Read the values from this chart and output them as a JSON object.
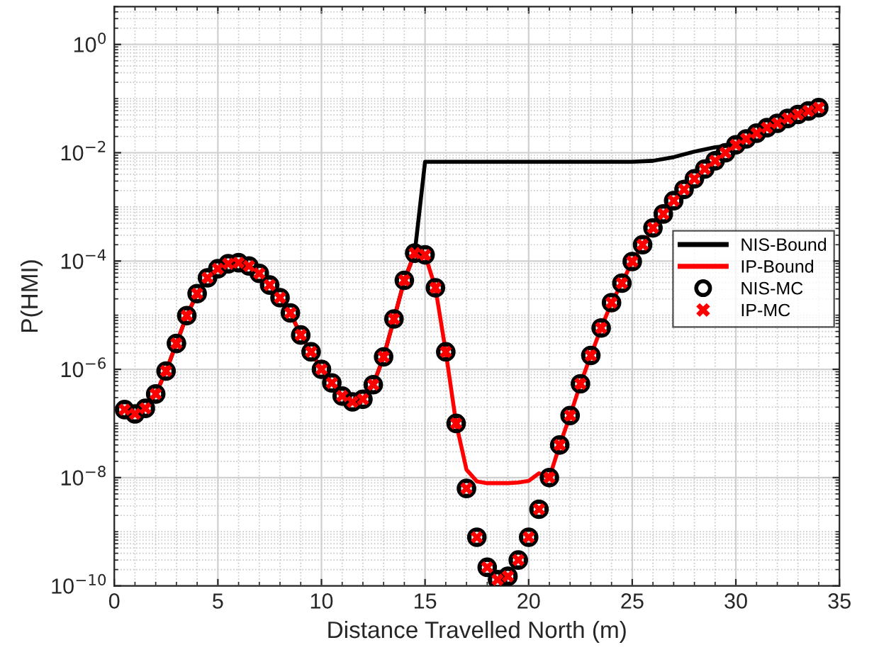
{
  "chart_data": {
    "type": "line",
    "xlabel": "Distance Travelled North (m)",
    "ylabel": "P(HMI)",
    "log": "y",
    "xlim": [
      0,
      35
    ],
    "xticks": [
      0,
      5,
      10,
      15,
      20,
      25,
      30,
      35
    ],
    "ylim": [
      1e-10,
      5
    ],
    "yticks": [
      {
        "value": 1e-10,
        "label": "10$^{−10}$"
      },
      {
        "value": 1e-08,
        "label": "10$^{−8}$"
      },
      {
        "value": 1e-06,
        "label": "10$^{−6}$"
      },
      {
        "value": 0.0001,
        "label": "10$^{−4}$"
      },
      {
        "value": 0.01,
        "label": "10$^{−2}$"
      },
      {
        "value": 1,
        "label": "10$^{0}$"
      }
    ],
    "grid": true,
    "legend": "right",
    "series": [
      {
        "name": "NIS-Bound",
        "color": "#000000",
        "line_style": "solid",
        "marker": "none",
        "x": [
          0.5,
          1,
          1.5,
          2,
          2.5,
          3,
          3.5,
          4,
          4.5,
          5,
          5.5,
          6,
          6.5,
          7,
          7.5,
          8,
          8.5,
          9,
          9.5,
          10,
          10.5,
          11,
          11.5,
          12,
          12.5,
          13,
          13.5,
          14,
          14.5,
          15,
          16,
          17,
          18,
          19,
          20,
          21,
          22,
          23,
          24,
          25,
          26,
          27,
          28,
          29,
          30,
          30.5,
          31,
          31.5,
          32,
          32.5,
          33,
          33.5,
          34
        ],
        "values": [
          1.8e-07,
          1.5e-07,
          1.9e-07,
          3.5e-07,
          9.3e-07,
          3e-06,
          9.8e-06,
          2.5e-05,
          4.9e-05,
          7.2e-05,
          8.9e-05,
          9.3e-05,
          8.1e-05,
          5.9e-05,
          3.6e-05,
          2.1e-05,
          1.1e-05,
          4.3e-06,
          2.1e-06,
          1e-06,
          5.6e-07,
          3.2e-07,
          2.5e-07,
          2.8e-07,
          5.2e-07,
          1.7e-06,
          8.5e-06,
          4.4e-05,
          0.00014,
          0.0068,
          0.0068,
          0.0068,
          0.0068,
          0.0068,
          0.0068,
          0.0068,
          0.0068,
          0.0068,
          0.0068,
          0.0068,
          0.0071,
          0.0083,
          0.0105,
          0.0126,
          0.014,
          0.018,
          0.023,
          0.029,
          0.035,
          0.043,
          0.051,
          0.059,
          0.068
        ]
      },
      {
        "name": "IP-Bound",
        "color": "#ff0000",
        "line_style": "solid",
        "marker": "none",
        "x": [
          0.5,
          1,
          1.5,
          2,
          2.5,
          3,
          3.5,
          4,
          4.5,
          5,
          5.5,
          6,
          6.5,
          7,
          7.5,
          8,
          8.5,
          9,
          9.5,
          10,
          10.5,
          11,
          11.5,
          12,
          12.5,
          13,
          13.5,
          14,
          14.5,
          15,
          15.5,
          16,
          16.5,
          17,
          17.5,
          18,
          18.5,
          19,
          19.5,
          20,
          20.5,
          21,
          21.5,
          22,
          22.5,
          23,
          23.5,
          24,
          24.5,
          25,
          25.5,
          26,
          26.5,
          27,
          27.5,
          28,
          28.5,
          29,
          29.5,
          30,
          30.5,
          31,
          31.5,
          32,
          32.5,
          33,
          33.5,
          34
        ],
        "values": [
          1.8e-07,
          1.5e-07,
          1.9e-07,
          3.5e-07,
          9.3e-07,
          3e-06,
          9.8e-06,
          2.5e-05,
          4.9e-05,
          7.2e-05,
          8.9e-05,
          9.3e-05,
          8.1e-05,
          5.9e-05,
          3.6e-05,
          2.1e-05,
          1.1e-05,
          4.3e-06,
          2.1e-06,
          1e-06,
          5.6e-07,
          3.2e-07,
          2.5e-07,
          2.8e-07,
          5.2e-07,
          1.7e-06,
          8.5e-06,
          4.4e-05,
          0.00014,
          0.00013,
          3.2e-05,
          2.1e-06,
          1e-07,
          1.4e-08,
          8.5e-09,
          7.9e-09,
          7.9e-09,
          7.9e-09,
          8.1e-09,
          8.7e-09,
          1.2e-08,
          1e-08,
          4e-08,
          1.4e-07,
          5.4e-07,
          1.8e-06,
          5.8e-06,
          1.7e-05,
          3.9e-05,
          9.8e-05,
          0.0002,
          0.00041,
          0.00074,
          0.0013,
          0.0021,
          0.0033,
          0.005,
          0.0071,
          0.01,
          0.014,
          0.018,
          0.023,
          0.029,
          0.035,
          0.043,
          0.051,
          0.059,
          0.068
        ]
      },
      {
        "name": "NIS-MC",
        "type": "scatter",
        "color": "#000000",
        "marker": "circle",
        "x": [
          0.5,
          1,
          1.5,
          2,
          2.5,
          3,
          3.5,
          4,
          4.5,
          5,
          5.5,
          6,
          6.5,
          7,
          7.5,
          8,
          8.5,
          9,
          9.5,
          10,
          10.5,
          11,
          11.5,
          12,
          12.5,
          13,
          13.5,
          14,
          14.5,
          15,
          15.5,
          16,
          16.5,
          17,
          17.5,
          18,
          18.5,
          19,
          19.5,
          20,
          20.5,
          21,
          21.5,
          22,
          22.5,
          23,
          23.5,
          24,
          24.5,
          25,
          25.5,
          26,
          26.5,
          27,
          27.5,
          28,
          28.5,
          29,
          29.5,
          30,
          30.5,
          31,
          31.5,
          32,
          32.5,
          33,
          33.5,
          34
        ],
        "values": [
          1.8e-07,
          1.5e-07,
          1.9e-07,
          3.5e-07,
          9.3e-07,
          3e-06,
          9.8e-06,
          2.5e-05,
          4.9e-05,
          7.2e-05,
          8.9e-05,
          9.3e-05,
          8.1e-05,
          5.9e-05,
          3.6e-05,
          2.1e-05,
          1.1e-05,
          4.3e-06,
          2.1e-06,
          1e-06,
          5.6e-07,
          3.2e-07,
          2.5e-07,
          2.8e-07,
          5.2e-07,
          1.7e-06,
          8.5e-06,
          4.4e-05,
          0.00014,
          0.00013,
          3.2e-05,
          2.1e-06,
          1e-07,
          6.3e-09,
          7.9e-10,
          2.2e-10,
          1.3e-10,
          1.5e-10,
          3e-10,
          7.9e-10,
          2.6e-09,
          1e-08,
          4e-08,
          1.4e-07,
          5.4e-07,
          1.8e-06,
          5.8e-06,
          1.7e-05,
          3.9e-05,
          9.8e-05,
          0.0002,
          0.00041,
          0.00074,
          0.0013,
          0.0021,
          0.0033,
          0.005,
          0.0071,
          0.01,
          0.014,
          0.018,
          0.023,
          0.029,
          0.035,
          0.043,
          0.051,
          0.059,
          0.068
        ]
      },
      {
        "name": "IP-MC",
        "type": "scatter",
        "color": "#ff0000",
        "marker": "cross",
        "x": [
          0.5,
          1,
          1.5,
          2,
          2.5,
          3,
          3.5,
          4,
          4.5,
          5,
          5.5,
          6,
          6.5,
          7,
          7.5,
          8,
          8.5,
          9,
          9.5,
          10,
          10.5,
          11,
          11.5,
          12,
          12.5,
          13,
          13.5,
          14,
          14.5,
          15,
          15.5,
          16,
          16.5,
          17,
          17.5,
          18,
          18.5,
          19,
          19.5,
          20,
          20.5,
          21,
          21.5,
          22,
          22.5,
          23,
          23.5,
          24,
          24.5,
          25,
          25.5,
          26,
          26.5,
          27,
          27.5,
          28,
          28.5,
          29,
          29.5,
          30,
          30.5,
          31,
          31.5,
          32,
          32.5,
          33,
          33.5,
          34
        ],
        "values": [
          1.8e-07,
          1.5e-07,
          1.9e-07,
          3.5e-07,
          9.3e-07,
          3e-06,
          9.8e-06,
          2.5e-05,
          4.9e-05,
          7.2e-05,
          8.9e-05,
          9.3e-05,
          8.1e-05,
          5.9e-05,
          3.6e-05,
          2.1e-05,
          1.1e-05,
          4.3e-06,
          2.1e-06,
          1e-06,
          5.6e-07,
          3.2e-07,
          2.5e-07,
          2.8e-07,
          5.2e-07,
          1.7e-06,
          8.5e-06,
          4.4e-05,
          0.00014,
          0.00013,
          3.2e-05,
          2.1e-06,
          1e-07,
          6.3e-09,
          7.9e-10,
          2.2e-10,
          1.3e-10,
          1.5e-10,
          3e-10,
          7.9e-10,
          2.6e-09,
          1e-08,
          4e-08,
          1.4e-07,
          5.4e-07,
          1.8e-06,
          5.8e-06,
          1.7e-05,
          3.9e-05,
          9.8e-05,
          0.0002,
          0.00041,
          0.00074,
          0.0013,
          0.0021,
          0.0033,
          0.005,
          0.0071,
          0.01,
          0.014,
          0.018,
          0.023,
          0.029,
          0.035,
          0.043,
          0.051,
          0.059,
          0.068
        ]
      }
    ]
  }
}
